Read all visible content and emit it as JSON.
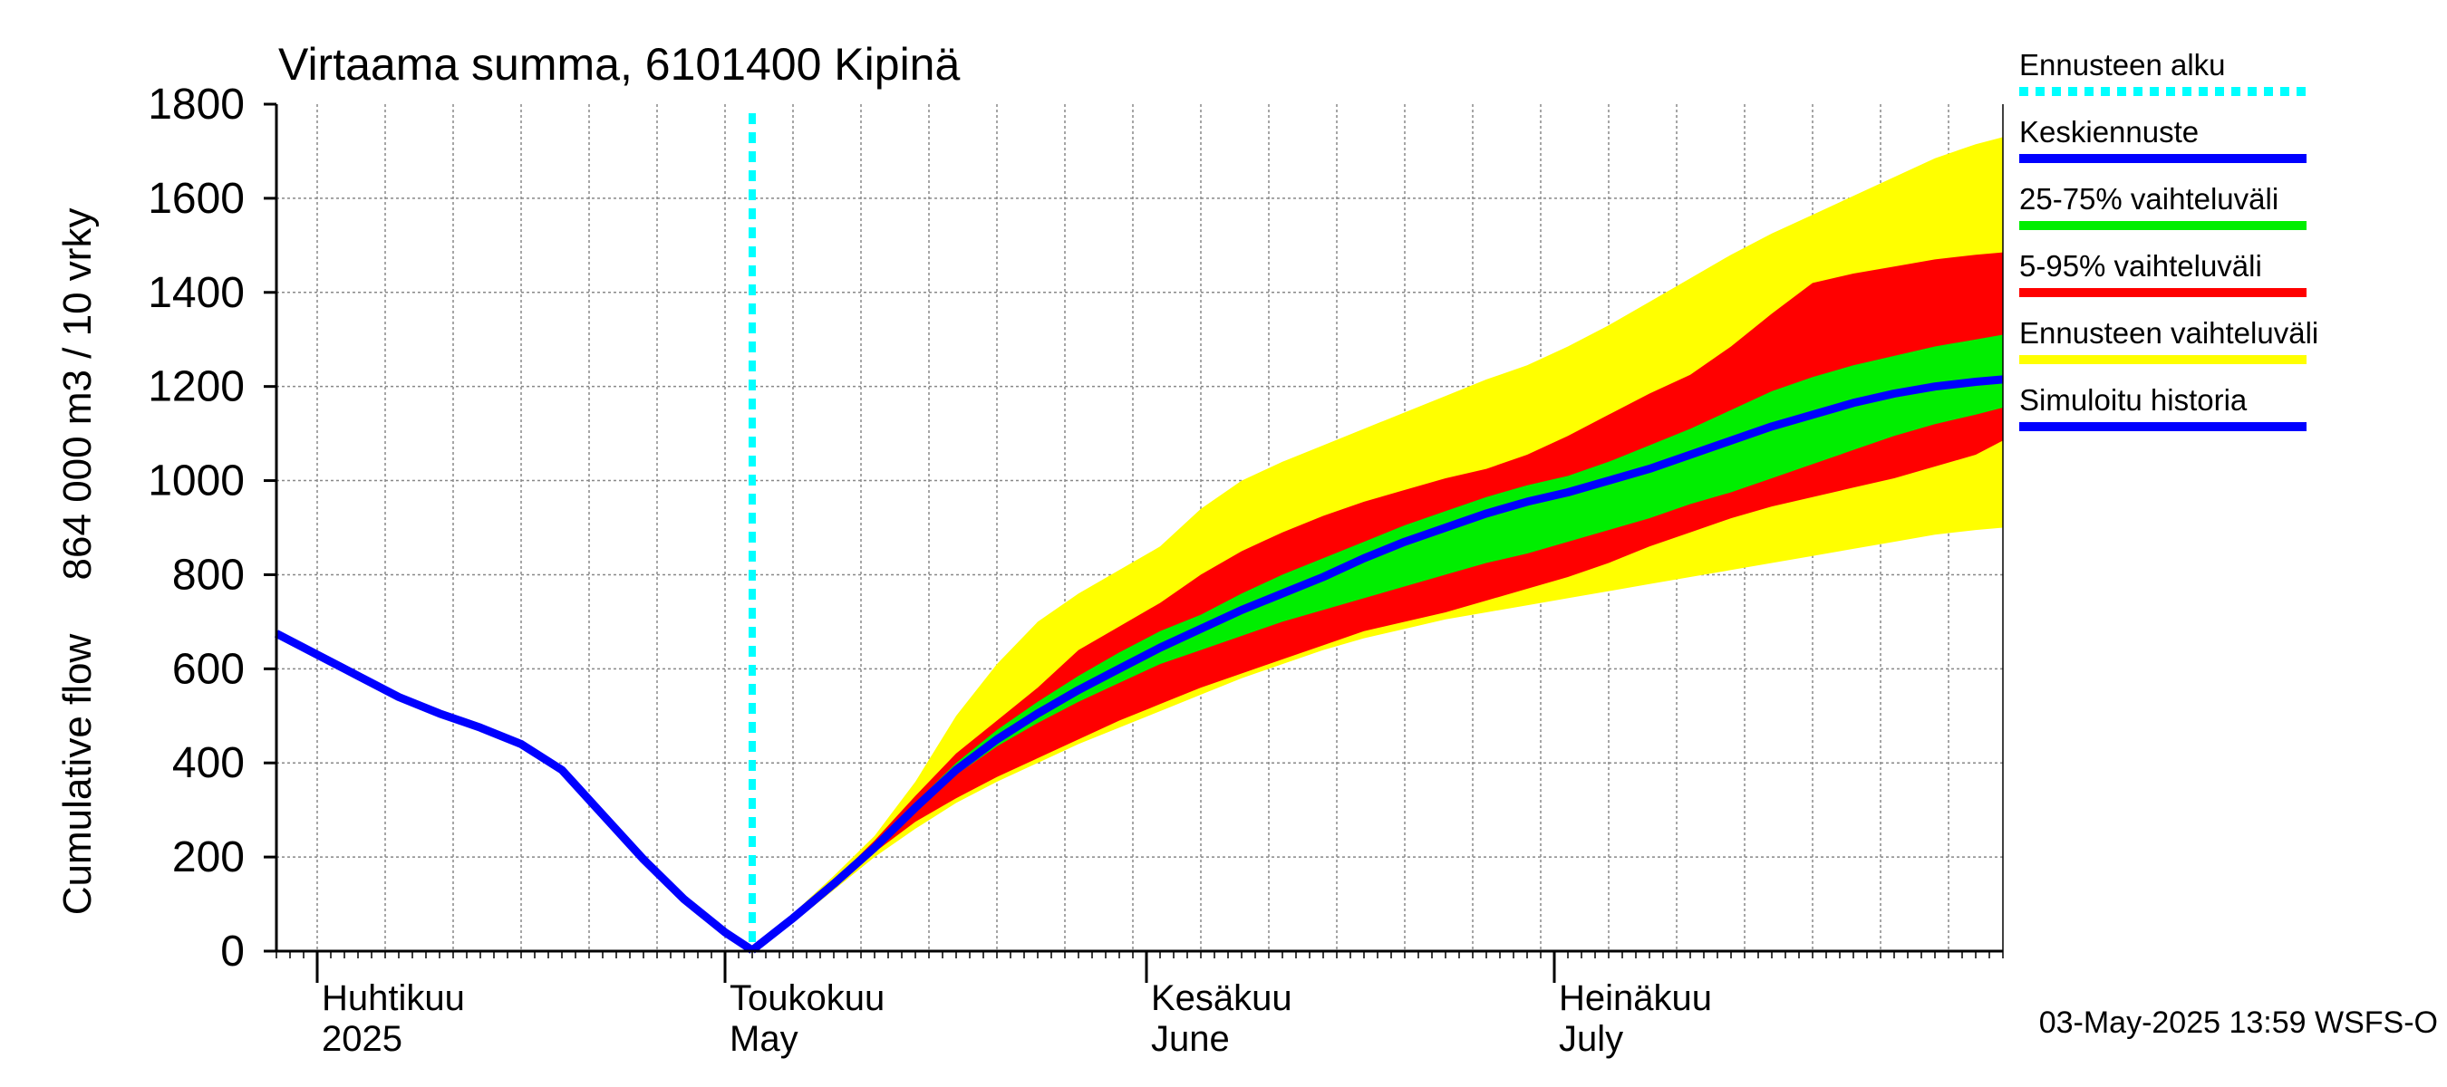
{
  "chart_data": {
    "type": "area",
    "title": "Virtaama summa, 6101400 Kipinä",
    "ylabel_line1": "864 000 m3 / 10 vrky",
    "ylabel_line2": "Cumulative flow",
    "ylim": [
      0,
      1800
    ],
    "yticks": [
      0,
      200,
      400,
      600,
      800,
      1000,
      1200,
      1400,
      1600,
      1800
    ],
    "x_domain": [
      "2025-03-29",
      "2025-08-03"
    ],
    "month_labels": [
      {
        "date": "2025-04-01",
        "fi": "Huhtikuu",
        "en": "2025"
      },
      {
        "date": "2025-05-01",
        "fi": "Toukokuu",
        "en": "May"
      },
      {
        "date": "2025-06-01",
        "fi": "Kesäkuu",
        "en": "June"
      },
      {
        "date": "2025-07-01",
        "fi": "Heinäkuu",
        "en": "July"
      }
    ],
    "forecast_start": "2025-05-03",
    "grid": true,
    "legend_placement": "right",
    "footer": "03-May-2025 13:59 WSFS-O",
    "history": {
      "x": [
        "2025-03-29",
        "2025-04-01",
        "2025-04-04",
        "2025-04-07",
        "2025-04-10",
        "2025-04-13",
        "2025-04-16",
        "2025-04-19",
        "2025-04-22",
        "2025-04-25",
        "2025-04-28",
        "2025-05-01",
        "2025-05-03"
      ],
      "y": [
        675,
        630,
        585,
        540,
        505,
        475,
        440,
        385,
        290,
        195,
        110,
        40,
        2
      ]
    },
    "x": [
      "2025-05-03",
      "2025-05-06",
      "2025-05-09",
      "2025-05-12",
      "2025-05-15",
      "2025-05-18",
      "2025-05-21",
      "2025-05-24",
      "2025-05-27",
      "2025-05-30",
      "2025-06-02",
      "2025-06-05",
      "2025-06-08",
      "2025-06-11",
      "2025-06-14",
      "2025-06-17",
      "2025-06-20",
      "2025-06-23",
      "2025-06-26",
      "2025-06-29",
      "2025-07-02",
      "2025-07-05",
      "2025-07-08",
      "2025-07-11",
      "2025-07-14",
      "2025-07-17",
      "2025-07-20",
      "2025-07-23",
      "2025-07-26",
      "2025-07-29",
      "2025-08-01",
      "2025-08-03"
    ],
    "series": [
      {
        "name": "Ennusteen vaihteluväli",
        "role": "band",
        "color": "#ffff00",
        "upper": [
          2,
          80,
          160,
          245,
          360,
          500,
          610,
          700,
          760,
          810,
          860,
          940,
          1000,
          1040,
          1075,
          1110,
          1145,
          1180,
          1215,
          1245,
          1285,
          1330,
          1380,
          1430,
          1480,
          1525,
          1565,
          1605,
          1645,
          1685,
          1715,
          1730
        ],
        "lower": [
          2,
          60,
          130,
          200,
          260,
          315,
          360,
          400,
          440,
          475,
          510,
          545,
          580,
          610,
          640,
          665,
          685,
          705,
          720,
          735,
          750,
          765,
          780,
          795,
          810,
          825,
          840,
          855,
          870,
          885,
          895,
          900
        ]
      },
      {
        "name": "5-95% vaihteluväli",
        "role": "band",
        "color": "#ff0000",
        "upper": [
          2,
          75,
          150,
          235,
          330,
          420,
          490,
          560,
          640,
          690,
          740,
          800,
          850,
          890,
          925,
          955,
          980,
          1005,
          1025,
          1055,
          1095,
          1140,
          1185,
          1225,
          1285,
          1355,
          1420,
          1440,
          1455,
          1470,
          1480,
          1485
        ],
        "lower": [
          2,
          65,
          135,
          210,
          275,
          325,
          370,
          410,
          450,
          490,
          525,
          560,
          590,
          620,
          650,
          680,
          700,
          720,
          745,
          770,
          795,
          825,
          860,
          890,
          920,
          945,
          965,
          985,
          1005,
          1030,
          1055,
          1085
        ]
      },
      {
        "name": "25-75% vaihteluväli",
        "role": "band",
        "color": "#00ee00",
        "upper": [
          2,
          72,
          145,
          225,
          315,
          400,
          470,
          530,
          585,
          635,
          680,
          715,
          760,
          800,
          835,
          870,
          905,
          935,
          965,
          990,
          1010,
          1040,
          1075,
          1110,
          1150,
          1190,
          1220,
          1245,
          1265,
          1285,
          1300,
          1310
        ],
        "lower": [
          2,
          68,
          140,
          215,
          300,
          375,
          435,
          485,
          530,
          570,
          610,
          640,
          670,
          700,
          725,
          750,
          775,
          800,
          825,
          845,
          870,
          895,
          920,
          950,
          975,
          1005,
          1035,
          1065,
          1095,
          1120,
          1140,
          1155
        ]
      },
      {
        "name": "Keskiennuste",
        "role": "line",
        "color": "#0000ff",
        "values": [
          2,
          70,
          143,
          220,
          305,
          385,
          450,
          505,
          555,
          600,
          645,
          685,
          725,
          760,
          795,
          835,
          870,
          900,
          930,
          955,
          975,
          1000,
          1025,
          1055,
          1085,
          1115,
          1140,
          1165,
          1185,
          1200,
          1210,
          1215
        ]
      }
    ],
    "legend": [
      {
        "label": "Ennusteen alku",
        "color": "#00ffff",
        "style": "dotted"
      },
      {
        "label": "Keskiennuste",
        "color": "#0000ff",
        "style": "solid"
      },
      {
        "label": "25-75% vaihteluväli",
        "color": "#00ee00",
        "style": "solid"
      },
      {
        "label": "5-95% vaihteluväli",
        "color": "#ff0000",
        "style": "solid"
      },
      {
        "label": "Ennusteen vaihteluväli",
        "color": "#ffff00",
        "style": "solid"
      },
      {
        "label": "Simuloitu historia",
        "color": "#0000ff",
        "style": "solid"
      }
    ]
  }
}
